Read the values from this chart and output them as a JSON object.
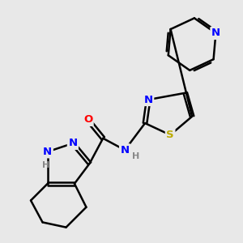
{
  "bg_color": "#e8e8e8",
  "bond_color": "#000000",
  "bond_width": 1.8,
  "atom_colors": {
    "N": "#0000ff",
    "O": "#ff0000",
    "S": "#bbaa00",
    "H": "#888888"
  },
  "font_size": 9.5,
  "fig_size": [
    3.0,
    3.0
  ],
  "dpi": 100
}
